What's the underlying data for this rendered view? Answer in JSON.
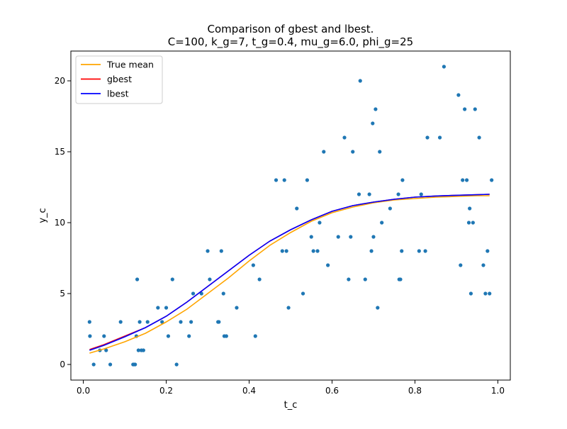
{
  "chart_data": {
    "type": "scatter",
    "title": "Comparison of gbest and lbest.",
    "subtitle": "C=100, k_g=7, t_g=0.4, mu_g=6.0, phi_g=25",
    "xlabel": "t_c",
    "ylabel": "y_c",
    "xlim": [
      -0.03,
      1.03
    ],
    "ylim": [
      -1.1,
      22.1
    ],
    "xticks": [
      0.0,
      0.2,
      0.4,
      0.6,
      0.8,
      1.0
    ],
    "xtick_labels": [
      "0.0",
      "0.2",
      "0.4",
      "0.6",
      "0.8",
      "1.0"
    ],
    "yticks": [
      0,
      5,
      10,
      15,
      20
    ],
    "ytick_labels": [
      "0",
      "5",
      "10",
      "15",
      "20"
    ],
    "grid": false,
    "legend_position": "top-left",
    "colors": {
      "points": "#1f77b4",
      "true_mean": "#ffa500",
      "gbest": "#ff0000",
      "lbest": "#0000ff"
    },
    "scatter": {
      "x": [
        0.015,
        0.016,
        0.025,
        0.04,
        0.05,
        0.055,
        0.065,
        0.09,
        0.12,
        0.122,
        0.125,
        0.128,
        0.13,
        0.133,
        0.136,
        0.14,
        0.145,
        0.155,
        0.18,
        0.19,
        0.2,
        0.205,
        0.215,
        0.225,
        0.235,
        0.255,
        0.26,
        0.265,
        0.285,
        0.3,
        0.305,
        0.325,
        0.327,
        0.333,
        0.338,
        0.34,
        0.345,
        0.37,
        0.41,
        0.415,
        0.425,
        0.465,
        0.48,
        0.485,
        0.49,
        0.495,
        0.515,
        0.53,
        0.54,
        0.55,
        0.555,
        0.565,
        0.57,
        0.58,
        0.59,
        0.615,
        0.63,
        0.64,
        0.645,
        0.65,
        0.665,
        0.668,
        0.68,
        0.69,
        0.695,
        0.698,
        0.7,
        0.705,
        0.71,
        0.715,
        0.72,
        0.74,
        0.76,
        0.762,
        0.765,
        0.768,
        0.77,
        0.81,
        0.815,
        0.825,
        0.83,
        0.86,
        0.87,
        0.905,
        0.91,
        0.915,
        0.92,
        0.925,
        0.93,
        0.932,
        0.935,
        0.94,
        0.945,
        0.955,
        0.965,
        0.97,
        0.975,
        0.98,
        0.985
      ],
      "y": [
        3,
        2,
        0,
        1,
        2,
        1,
        0,
        3,
        0,
        0,
        0,
        2,
        6,
        1,
        3,
        1,
        1,
        3,
        4,
        3,
        4,
        2,
        6,
        0,
        3,
        2,
        3,
        5,
        5,
        8,
        6,
        3,
        3,
        8,
        5,
        2,
        2,
        4,
        7,
        2,
        6,
        13,
        8,
        13,
        8,
        4,
        11,
        5,
        13,
        9,
        8,
        8,
        10,
        15,
        7,
        9,
        16,
        6,
        9,
        15,
        12,
        20,
        6,
        12,
        8,
        17,
        9,
        18,
        4,
        15,
        10,
        11,
        12,
        6,
        6,
        8,
        13,
        8,
        12,
        8,
        16,
        16,
        21,
        19,
        7,
        13,
        18,
        13,
        10,
        11,
        5,
        10,
        18,
        16,
        7,
        5,
        8,
        5,
        13
      ]
    },
    "series": [
      {
        "name": "True mean",
        "x": [
          0.015,
          0.05,
          0.1,
          0.15,
          0.2,
          0.25,
          0.3,
          0.35,
          0.4,
          0.45,
          0.5,
          0.55,
          0.6,
          0.65,
          0.7,
          0.75,
          0.8,
          0.85,
          0.9,
          0.95,
          0.98
        ],
        "y": [
          0.8,
          1.1,
          1.6,
          2.2,
          3.0,
          3.9,
          5.0,
          6.1,
          7.3,
          8.4,
          9.3,
          10.1,
          10.7,
          11.1,
          11.4,
          11.6,
          11.7,
          11.8,
          11.85,
          11.9,
          11.9
        ]
      },
      {
        "name": "gbest",
        "x": [
          0.015,
          0.05,
          0.1,
          0.15,
          0.2,
          0.25,
          0.3,
          0.35,
          0.4,
          0.45,
          0.5,
          0.55,
          0.6,
          0.65,
          0.7,
          0.75,
          0.8,
          0.85,
          0.9,
          0.95,
          0.98
        ],
        "y": [
          1.05,
          1.4,
          2.0,
          2.6,
          3.4,
          4.4,
          5.5,
          6.6,
          7.7,
          8.7,
          9.5,
          10.2,
          10.8,
          11.2,
          11.45,
          11.65,
          11.8,
          11.88,
          11.93,
          11.97,
          12.0
        ]
      },
      {
        "name": "lbest",
        "x": [
          0.015,
          0.05,
          0.1,
          0.15,
          0.2,
          0.25,
          0.3,
          0.35,
          0.4,
          0.45,
          0.5,
          0.55,
          0.6,
          0.65,
          0.7,
          0.75,
          0.8,
          0.85,
          0.9,
          0.95,
          0.98
        ],
        "y": [
          1.0,
          1.35,
          1.95,
          2.6,
          3.4,
          4.4,
          5.5,
          6.6,
          7.7,
          8.7,
          9.5,
          10.2,
          10.8,
          11.2,
          11.45,
          11.65,
          11.8,
          11.88,
          11.93,
          11.97,
          12.0
        ]
      }
    ]
  }
}
